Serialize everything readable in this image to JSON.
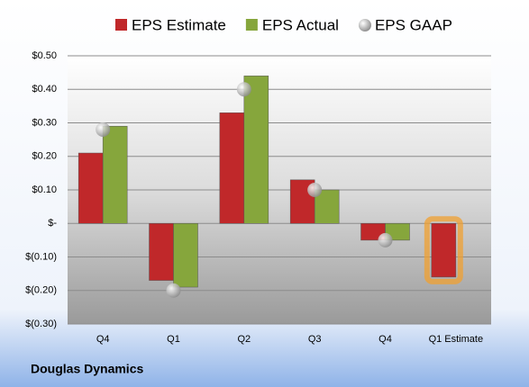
{
  "chart_data": {
    "type": "bar",
    "company": "Douglas Dynamics",
    "categories": [
      "Q4",
      "Q1",
      "Q2",
      "Q3",
      "Q4",
      "Q1 Estimate"
    ],
    "series": [
      {
        "name": "EPS Estimate",
        "color": "#c0282a",
        "values": [
          0.21,
          -0.17,
          0.33,
          0.13,
          -0.05,
          -0.16
        ]
      },
      {
        "name": "EPS Actual",
        "color": "#86a63c",
        "values": [
          0.29,
          -0.19,
          0.44,
          0.1,
          -0.05,
          null
        ]
      },
      {
        "name": "EPS GAAP",
        "type": "scatter",
        "color": "#a8a8a8",
        "values": [
          0.28,
          -0.2,
          0.4,
          0.1,
          -0.05,
          null
        ]
      }
    ],
    "ylim": [
      -0.3,
      0.5
    ],
    "yticks": [
      {
        "value": -0.3,
        "label": "$(0.30)"
      },
      {
        "value": -0.2,
        "label": "$(0.20)"
      },
      {
        "value": -0.1,
        "label": "$(0.10)"
      },
      {
        "value": 0,
        "label": "$-"
      },
      {
        "value": 0.1,
        "label": "$0.10"
      },
      {
        "value": 0.2,
        "label": "$0.20"
      },
      {
        "value": 0.3,
        "label": "$0.30"
      },
      {
        "value": 0.4,
        "label": "$0.40"
      },
      {
        "value": 0.5,
        "label": "$0.50"
      }
    ],
    "grid": true,
    "highlight_color": "#f0a030"
  }
}
